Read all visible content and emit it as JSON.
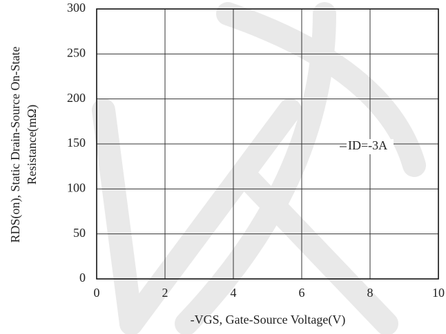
{
  "chart_data": {
    "type": "line",
    "y_label": [
      "RDS(on), Static Drain-Source On-State",
      "Resistance(mΩ)"
    ],
    "x_label": "-VGS, Gate-Source Voltage(V)",
    "annotation": "ID=-3A",
    "xlim": [
      0,
      10
    ],
    "xticks": [
      0,
      2,
      4,
      6,
      8,
      10
    ],
    "ylim": [
      0,
      300
    ],
    "yticks": [
      0,
      50,
      100,
      150,
      200,
      250,
      300
    ],
    "grid": true
  }
}
